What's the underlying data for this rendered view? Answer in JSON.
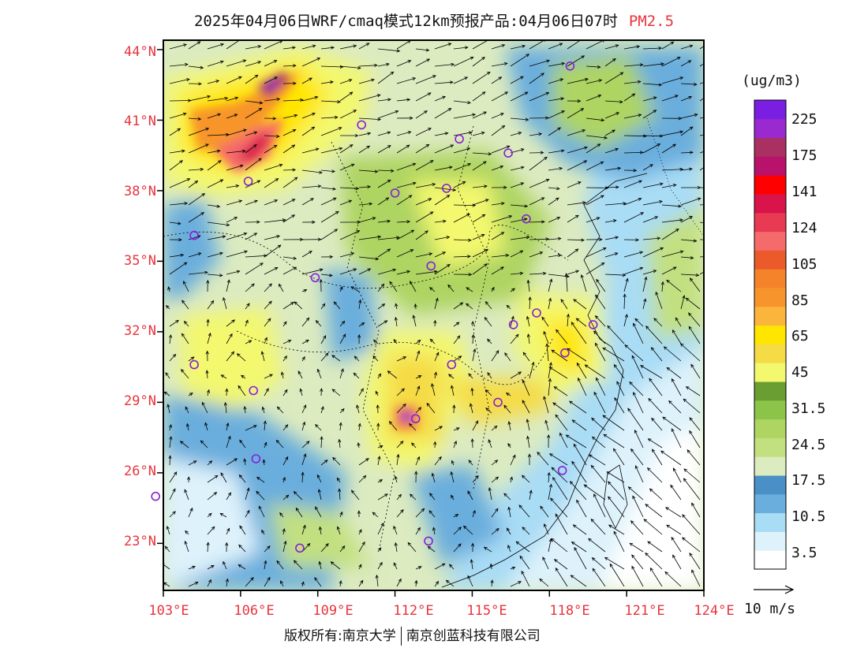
{
  "title": {
    "main": "2025年04月06日WRF/cmaq模式12km预报产品:04月06日07时",
    "species": "PM2.5"
  },
  "map": {
    "lat_labels": [
      "44°N",
      "41°N",
      "38°N",
      "35°N",
      "32°N",
      "29°N",
      "26°N",
      "23°N"
    ],
    "lon_labels": [
      "103°E",
      "106°E",
      "109°E",
      "112°E",
      "115°E",
      "118°E",
      "121°E",
      "124°E"
    ],
    "lat_range": [
      21,
      44.4
    ],
    "lon_range": [
      103,
      124
    ],
    "city_marker_color": "#8a1fd6",
    "coast_color": "#000000"
  },
  "colorbar": {
    "unit": "(ug/m3)",
    "colors": [
      "#ffffff",
      "#ddf2fb",
      "#a9dcf5",
      "#6aaedd",
      "#4a8fc6",
      "#dcebc0",
      "#c2e080",
      "#aed462",
      "#8cc44a",
      "#6a9e32",
      "#f3f86e",
      "#f5dc46",
      "#ffe600",
      "#fbb43c",
      "#f7952c",
      "#f5832a",
      "#ea5a2a",
      "#f56a6a",
      "#e83a52",
      "#d8144a",
      "#ff0000",
      "#b8126a",
      "#aa3062",
      "#9a2ad0",
      "#7a1ee2"
    ],
    "tick_labels": [
      "3.5",
      "10.5",
      "17.5",
      "24.5",
      "31.5",
      "45",
      "65",
      "85",
      "105",
      "124",
      "141",
      "175",
      "225"
    ]
  },
  "wind_legend": {
    "label": "10 m/s"
  },
  "copyright": {
    "left": "版权所有:南京大学",
    "right": "南京创蓝科技有限公司"
  },
  "cities": [
    {
      "lon": 118.8,
      "lat": 43.3
    },
    {
      "lon": 110.7,
      "lat": 40.8
    },
    {
      "lon": 114.5,
      "lat": 40.2
    },
    {
      "lon": 116.4,
      "lat": 39.6
    },
    {
      "lon": 106.3,
      "lat": 38.4
    },
    {
      "lon": 112.0,
      "lat": 37.9
    },
    {
      "lon": 114.0,
      "lat": 38.1
    },
    {
      "lon": 117.1,
      "lat": 36.8
    },
    {
      "lon": 104.2,
      "lat": 36.1
    },
    {
      "lon": 108.9,
      "lat": 34.3
    },
    {
      "lon": 113.4,
      "lat": 34.8
    },
    {
      "lon": 116.6,
      "lat": 32.3
    },
    {
      "lon": 117.5,
      "lat": 32.8
    },
    {
      "lon": 119.7,
      "lat": 32.3
    },
    {
      "lon": 118.6,
      "lat": 31.1
    },
    {
      "lon": 104.2,
      "lat": 30.6
    },
    {
      "lon": 114.2,
      "lat": 30.6
    },
    {
      "lon": 106.5,
      "lat": 29.5
    },
    {
      "lon": 116.0,
      "lat": 29.0
    },
    {
      "lon": 112.8,
      "lat": 28.3
    },
    {
      "lon": 106.6,
      "lat": 26.6
    },
    {
      "lon": 118.5,
      "lat": 26.1
    },
    {
      "lon": 102.7,
      "lat": 25.0
    },
    {
      "lon": 108.3,
      "lat": 22.8
    },
    {
      "lon": 113.3,
      "lat": 23.1
    }
  ]
}
